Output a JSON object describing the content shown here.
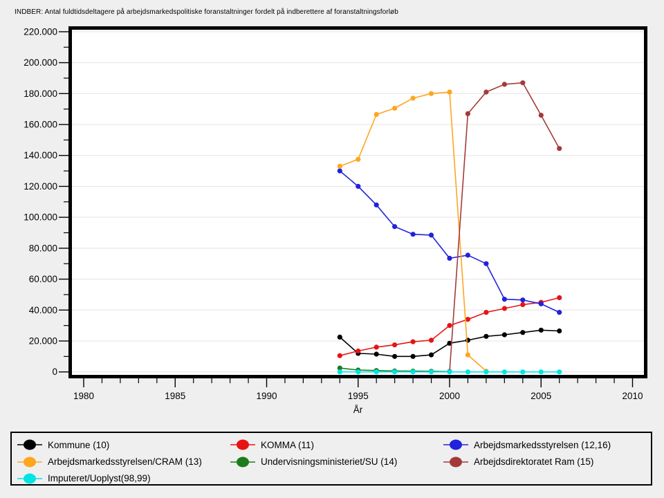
{
  "chart_title": "INDBER: Antal fuldtidsdeltagere på arbejdsmarkedspolitiske foranstaltninger fordelt på indberettere af foranstaltningsforløb",
  "x_axis": {
    "label": "År",
    "tick_years": [
      1980,
      1985,
      1990,
      1995,
      2000,
      2005,
      2010
    ],
    "tick_labels": [
      "1980",
      "1985",
      "1990",
      "1995",
      "2000",
      "2005",
      "2010"
    ],
    "minor_tick_step_years": 1
  },
  "y_axis": {
    "tick_values": [
      0,
      20000,
      40000,
      60000,
      80000,
      100000,
      120000,
      140000,
      160000,
      180000,
      200000,
      220000
    ],
    "tick_labels": [
      "0",
      "20.000",
      "40.000",
      "60.000",
      "80.000",
      "100.000",
      "120.000",
      "140.000",
      "160.000",
      "180.000",
      "200.000",
      "220.000"
    ],
    "minor_tick_step": 10000
  },
  "legend": {
    "items": [
      {
        "label": "Kommune (10)",
        "color": "#000000"
      },
      {
        "label": "KOMMA (11)",
        "color": "#E81212"
      },
      {
        "label": "Arbejdsmarkedsstyrelsen (12,16)",
        "color": "#2222DD"
      },
      {
        "label": "Arbejdsmarkedsstyrelsen/CRAM (13)",
        "color": "#FFA51E"
      },
      {
        "label": "Undervisningsministeriet/SU (14)",
        "color": "#1A7D1A"
      },
      {
        "label": "Arbejdsdirektoratet Ram (15)",
        "color": "#A33A3A"
      },
      {
        "label": "Imputeret/Uoplyst(98,99)",
        "color": "#00E4E4"
      }
    ]
  },
  "chart_data": {
    "type": "line",
    "title": "INDBER: Antal fuldtidsdeltagere på arbejdsmarkedspolitiske foranstaltninger fordelt på indberettere af foranstaltningsforløb",
    "xlabel": "År",
    "ylabel": "",
    "xlim": [
      1979.2,
      2010.8
    ],
    "ylim": [
      0,
      220000
    ],
    "grid": "horizontal-major",
    "legend_position": "bottom",
    "series": [
      {
        "name": "Kommune (10)",
        "color": "#000000",
        "x": [
          1994,
          1995,
          1996,
          1997,
          1998,
          1999,
          2000,
          2001,
          2002,
          2003,
          2004,
          2005,
          2006
        ],
        "y": [
          22500,
          12000,
          11500,
          10000,
          10000,
          11000,
          18500,
          20500,
          23000,
          24000,
          25500,
          27000,
          26500
        ]
      },
      {
        "name": "KOMMA (11)",
        "color": "#E81212",
        "x": [
          1994,
          1995,
          1996,
          1997,
          1998,
          1999,
          2000,
          2001,
          2002,
          2003,
          2004,
          2005,
          2006
        ],
        "y": [
          10500,
          13500,
          16000,
          17500,
          19500,
          20500,
          30000,
          34000,
          38500,
          41000,
          43500,
          45000,
          48000
        ]
      },
      {
        "name": "Arbejdsmarkedsstyrelsen (12,16)",
        "color": "#2222DD",
        "x": [
          1994,
          1995,
          1996,
          1997,
          1998,
          1999,
          2000,
          2001,
          2002,
          2003,
          2004,
          2005,
          2006
        ],
        "y": [
          130000,
          120000,
          108000,
          94000,
          89000,
          88500,
          73500,
          75500,
          70000,
          47000,
          46500,
          44000,
          38500
        ]
      },
      {
        "name": "Arbejdsmarkedsstyrelsen/CRAM (13)",
        "color": "#FFA51E",
        "x": [
          1994,
          1995,
          1996,
          1997,
          1998,
          1999,
          2000,
          2001,
          2002
        ],
        "y": [
          133000,
          137500,
          166500,
          170500,
          177000,
          180000,
          181000,
          11000,
          500
        ]
      },
      {
        "name": "Undervisningsministeriet/SU (14)",
        "color": "#1A7D1A",
        "x": [
          1994,
          1995,
          1996,
          1997,
          1998,
          1999,
          2000
        ],
        "y": [
          2500,
          1200,
          900,
          600,
          500,
          400,
          200
        ]
      },
      {
        "name": "Arbejdsdirektoratet Ram (15)",
        "color": "#A33A3A",
        "x": [
          2000,
          2001,
          2002,
          2003,
          2004,
          2005,
          2006
        ],
        "y": [
          300,
          167000,
          181000,
          186000,
          187000,
          166000,
          144500
        ]
      },
      {
        "name": "Imputeret/Uoplyst(98,99)",
        "color": "#00E4E4",
        "x": [
          1994,
          1995,
          1996,
          1997,
          1998,
          1999,
          2000,
          2001,
          2002,
          2003,
          2004,
          2005,
          2006
        ],
        "y": [
          0,
          0,
          0,
          0,
          0,
          0,
          0,
          0,
          0,
          0,
          0,
          0,
          0
        ]
      }
    ]
  }
}
